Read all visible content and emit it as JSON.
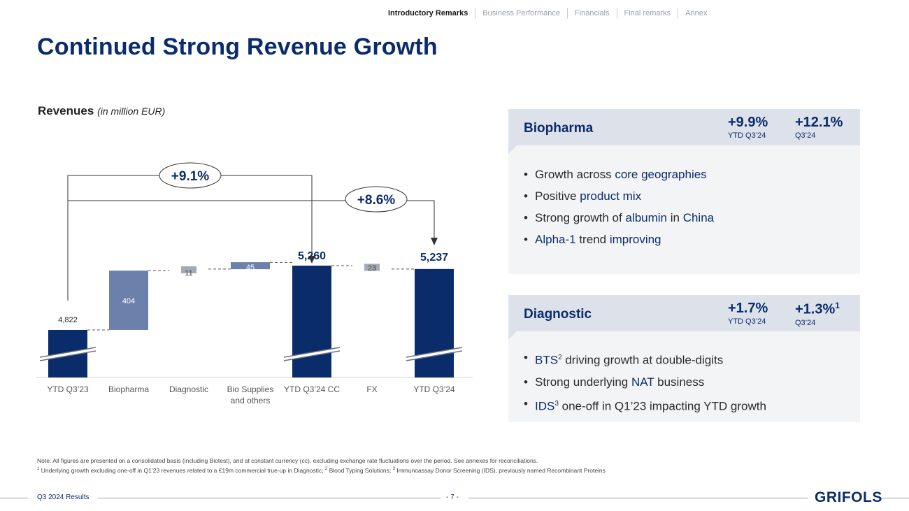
{
  "nav": {
    "items": [
      "Introductory Remarks",
      "Business Performance",
      "Financials",
      "Final remarks",
      "Annex"
    ],
    "active_index": 0
  },
  "title": "Continued Strong Revenue Growth",
  "revenues_label": {
    "main": "Revenues",
    "unit": "(in million EUR)"
  },
  "chart_data": {
    "type": "waterfall",
    "categories": [
      "YTD Q3'23",
      "Biopharma",
      "Diagnostic",
      "Bio Supplies and others",
      "YTD Q3'24 CC",
      "FX",
      "YTD Q3'24"
    ],
    "category_labels": [
      [
        "YTD Q3’23"
      ],
      [
        "Biopharma"
      ],
      [
        "Diagnostic"
      ],
      [
        "Bio Supplies",
        "and others"
      ],
      [
        "YTD Q3’24 CC"
      ],
      [
        "FX"
      ],
      [
        "YTD Q3’24"
      ]
    ],
    "values": [
      4822,
      404,
      11,
      45,
      5260,
      -23,
      5237
    ],
    "measure": [
      "total",
      "delta",
      "delta",
      "delta",
      "total",
      "delta",
      "total"
    ],
    "value_labels": [
      "4,822",
      "404",
      "11",
      "45",
      "5,260",
      "23",
      "5,237"
    ],
    "growth_callouts": [
      {
        "label": "+9.1%",
        "from": "YTD Q3'23",
        "to": "YTD Q3'24 CC"
      },
      {
        "label": "+8.6%",
        "from": "YTD Q3'23",
        "to": "YTD Q3'24"
      }
    ],
    "axis_broken": true,
    "colors": {
      "total": "#0b2c6b",
      "biopharma": "#6b80aa",
      "diagnostic": "#a3aab4",
      "bio_supplies": "#6b80aa",
      "fx": "#a3aab4"
    }
  },
  "panels": {
    "biopharma": {
      "name": "Biopharma",
      "metric1": {
        "value": "+9.9%",
        "label": "YTD Q3’24"
      },
      "metric2": {
        "value": "+12.1%",
        "label": "Q3’24"
      },
      "bullets": [
        {
          "plain1": "Growth across ",
          "hl1": "core geographies",
          "plain2": "",
          "hl2": "",
          "plain3": ""
        },
        {
          "plain1": "Positive ",
          "hl1": "product mix",
          "plain2": "",
          "hl2": "",
          "plain3": ""
        },
        {
          "plain1": "Strong growth of ",
          "hl1": "albumin",
          "plain2": " in ",
          "hl2": "China",
          "plain3": ""
        },
        {
          "plain1": "",
          "hl1": "Alpha-1",
          "plain2": " trend ",
          "hl2": "improving",
          "plain3": ""
        }
      ]
    },
    "diagnostic": {
      "name": "Diagnostic",
      "metric1": {
        "value": "+1.7%",
        "label": "YTD Q3’24"
      },
      "metric2": {
        "value": "+1.3%",
        "sup": "1",
        "label": "Q3’24"
      },
      "bullets": [
        {
          "hl1": "BTS",
          "sup": "2",
          "plain1": " driving growth at double-digits",
          "hl2": "",
          "plain2": ""
        },
        {
          "hl1": "",
          "sup": "",
          "plain1": "Strong underlying ",
          "hl2": "NAT",
          "plain2": " business"
        },
        {
          "hl1": "IDS",
          "sup": "3",
          "plain1": " one-off in Q1’23 impacting YTD growth",
          "hl2": "",
          "plain2": ""
        }
      ]
    }
  },
  "notes": {
    "line1": "Note: All figures are presented on a consolidated basis (including Biotest), and at constant currency (cc), excluding exchange rate fluctuations over the period. See annexes for reconciliations.",
    "line2_sup1": "1",
    "line2_a": " Underlying growth excluding one-off in Q1’23 revenues related to a €19m commercial true-up in Diagnostic; ",
    "line2_sup2": "2",
    "line2_b": " Blood Typing Solutions; ",
    "line2_sup3": "3",
    "line2_c": " Immunoassay Donor Screening (IDS), previously named Recombinant Proteins"
  },
  "footer": {
    "report": "Q3 2024 Results",
    "page": "- 7 -",
    "logo": "GRIFOLS"
  }
}
